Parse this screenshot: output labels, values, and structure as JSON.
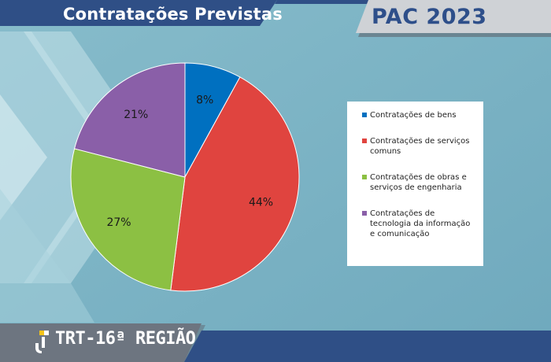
{
  "header": {
    "title": "Contratações Previstas",
    "badge": "PAC 2023"
  },
  "footer": {
    "logo_text": "TRT-16ª REGIÃO"
  },
  "chart_data": {
    "type": "pie",
    "title": "",
    "start_angle_deg": 0,
    "direction": "clockwise",
    "slices": [
      {
        "label": "Contratações de bens",
        "value": 8,
        "display": "8%",
        "color": "#0070c0"
      },
      {
        "label": "Contratações de serviços comuns",
        "value": 44,
        "display": "44%",
        "color": "#e0443f"
      },
      {
        "label": "Contratações de obras e serviços de engenharia",
        "value": 27,
        "display": "27%",
        "color": "#8cc043"
      },
      {
        "label": "Contratações de tecnologia da informação e comunicação",
        "value": 21,
        "display": "21%",
        "color": "#8a5fa8"
      }
    ],
    "legend": {
      "placement": "right",
      "labels": [
        [
          "Contratações de bens"
        ],
        [
          "Contratações de serviços",
          "comuns"
        ],
        [
          "Contratações de obras e",
          "serviços de engenharia"
        ],
        [
          "Contratações de",
          "tecnologia da informação",
          "e comunicação"
        ]
      ]
    }
  }
}
